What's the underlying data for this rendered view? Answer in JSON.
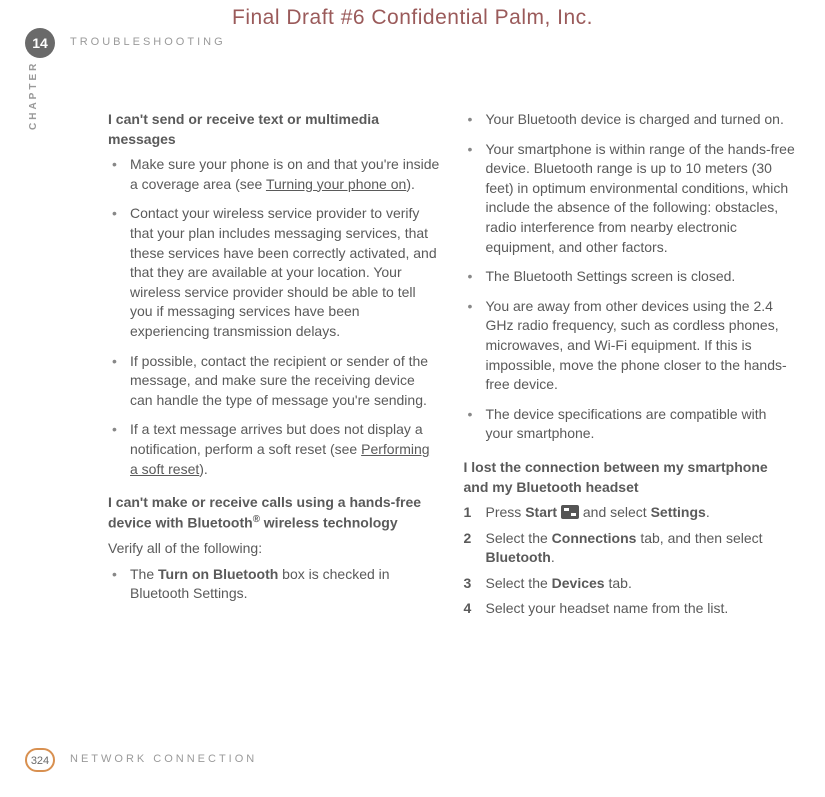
{
  "watermark": "Final Draft #6     Confidential     Palm, Inc.",
  "header": {
    "chapter_number": "14",
    "section_title": "TROUBLESHOOTING",
    "chapter_label": "CHAPTER"
  },
  "left": {
    "h1": "I can't send or receive text or multimedia messages",
    "b1a": "Make sure your phone is on and that you're inside a coverage area (see ",
    "b1b": "Turning your phone on",
    "b1c": ").",
    "b2": "Contact your wireless service provider to verify that your plan includes messaging services, that these services have been correctly activated, and that they are available at your location. Your wireless service provider should be able to tell you if messaging services have been experiencing transmission delays.",
    "b3": "If possible, contact the recipient or sender of the message, and make sure the receiving device can handle the type of message you're sending.",
    "b4a": "If a text message arrives but does not display a notification, perform a soft reset (see ",
    "b4b": "Performing a soft reset",
    "b4c": ").",
    "h2a": "I can't make or receive calls using a hands-free device with Bluetooth",
    "h2b": "®",
    "h2c": " wireless technology",
    "p1": "Verify all of the following:",
    "b5a": "The ",
    "b5b": "Turn on Bluetooth",
    "b5c": " box is checked in Bluetooth Settings."
  },
  "right": {
    "c1": "Your Bluetooth device is charged and turned on.",
    "c2": "Your smartphone is within range of the hands-free device. Bluetooth range is up to 10 meters (30 feet) in optimum environmental conditions, which include the absence of the following: obstacles, radio interference from nearby electronic equipment, and other factors.",
    "c3": "The Bluetooth Settings screen is closed.",
    "c4": "You are away from other devices using the 2.4 GHz radio frequency, such as cordless phones, microwaves, and Wi-Fi equipment. If this is impossible, move the phone closer to the hands-free device.",
    "c5": "The device specifications are compatible with your smartphone.",
    "h3": "I lost the connection between my smartphone and my Bluetooth headset",
    "s1n": "1",
    "s1a": "Press ",
    "s1b": "Start",
    "s1c": " and select ",
    "s1d": "Settings",
    "s1e": ".",
    "s2n": "2",
    "s2a": "Select the ",
    "s2b": "Connections",
    "s2c": " tab, and then select ",
    "s2d": "Bluetooth",
    "s2e": ".",
    "s3n": "3",
    "s3a": "Select the ",
    "s3b": "Devices",
    "s3c": " tab.",
    "s4n": "4",
    "s4a": "Select your headset name from the list."
  },
  "footer": {
    "page_number": "324",
    "section": "NETWORK CONNECTION"
  }
}
